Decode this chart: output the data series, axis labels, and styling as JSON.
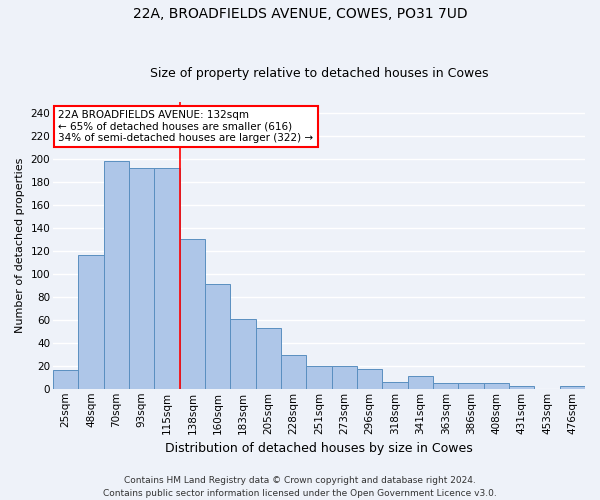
{
  "title1": "22A, BROADFIELDS AVENUE, COWES, PO31 7UD",
  "title2": "Size of property relative to detached houses in Cowes",
  "xlabel": "Distribution of detached houses by size in Cowes",
  "ylabel": "Number of detached properties",
  "categories": [
    "25sqm",
    "48sqm",
    "70sqm",
    "93sqm",
    "115sqm",
    "138sqm",
    "160sqm",
    "183sqm",
    "205sqm",
    "228sqm",
    "251sqm",
    "273sqm",
    "296sqm",
    "318sqm",
    "341sqm",
    "363sqm",
    "386sqm",
    "408sqm",
    "431sqm",
    "453sqm",
    "476sqm"
  ],
  "values": [
    16,
    116,
    198,
    192,
    192,
    130,
    91,
    61,
    53,
    29,
    20,
    20,
    17,
    6,
    11,
    5,
    5,
    5,
    2,
    0,
    2
  ],
  "bar_color": "#aec6e8",
  "bar_edge_color": "#5a8fc0",
  "vline_x_index": 5,
  "vline_color": "red",
  "annotation_text": "22A BROADFIELDS AVENUE: 132sqm\n← 65% of detached houses are smaller (616)\n34% of semi-detached houses are larger (322) →",
  "annotation_box_color": "white",
  "annotation_box_edge": "red",
  "ylim": [
    0,
    250
  ],
  "yticks": [
    0,
    20,
    40,
    60,
    80,
    100,
    120,
    140,
    160,
    180,
    200,
    220,
    240
  ],
  "footer1": "Contains HM Land Registry data © Crown copyright and database right 2024.",
  "footer2": "Contains public sector information licensed under the Open Government Licence v3.0.",
  "background_color": "#eef2f9",
  "grid_color": "#ffffff",
  "title1_fontsize": 10,
  "title2_fontsize": 9,
  "xlabel_fontsize": 9,
  "ylabel_fontsize": 8,
  "tick_fontsize": 7.5,
  "annotation_fontsize": 7.5,
  "footer_fontsize": 6.5
}
